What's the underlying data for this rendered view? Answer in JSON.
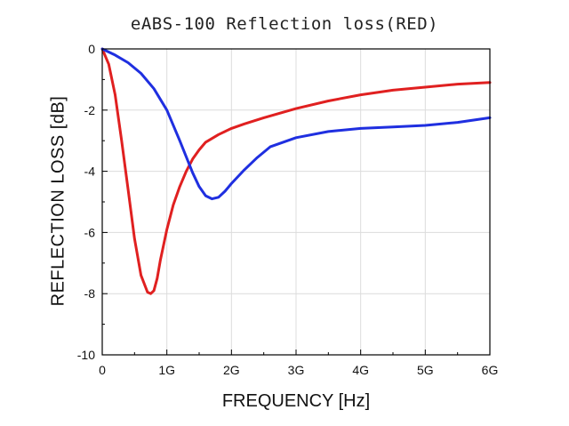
{
  "chart_data": {
    "type": "line",
    "title": "eABS-100 Reflection loss(RED)",
    "xlabel": "FREQUENCY [Hz]",
    "ylabel": "REFLECTION LOSS [dB]",
    "xlim": [
      0,
      6
    ],
    "ylim": [
      -10,
      0
    ],
    "x_ticks": [
      0,
      1,
      2,
      3,
      4,
      5,
      6
    ],
    "x_tick_labels": [
      "0",
      "1G",
      "2G",
      "3G",
      "4G",
      "5G",
      "6G"
    ],
    "y_ticks": [
      0,
      -2,
      -4,
      -6,
      -8,
      -10
    ],
    "y_tick_labels": [
      "0",
      "-2",
      "-4",
      "-6",
      "-8",
      "-10"
    ],
    "grid": true,
    "legend": "none",
    "series": [
      {
        "color": "#e02020",
        "x": [
          0,
          0.1,
          0.2,
          0.3,
          0.4,
          0.5,
          0.6,
          0.7,
          0.75,
          0.8,
          0.85,
          0.9,
          1.0,
          1.1,
          1.2,
          1.3,
          1.4,
          1.5,
          1.6,
          1.8,
          2.0,
          2.2,
          2.5,
          3.0,
          3.5,
          4.0,
          4.5,
          5.0,
          5.5,
          6.0
        ],
        "y": [
          0,
          -0.5,
          -1.5,
          -3.0,
          -4.6,
          -6.2,
          -7.4,
          -7.95,
          -8.0,
          -7.9,
          -7.5,
          -6.9,
          -5.9,
          -5.1,
          -4.5,
          -4.0,
          -3.6,
          -3.3,
          -3.05,
          -2.8,
          -2.6,
          -2.45,
          -2.25,
          -1.95,
          -1.7,
          -1.5,
          -1.35,
          -1.25,
          -1.15,
          -1.1
        ]
      },
      {
        "color": "#1f2fe0",
        "x": [
          0,
          0.2,
          0.4,
          0.6,
          0.8,
          1.0,
          1.2,
          1.4,
          1.5,
          1.6,
          1.7,
          1.8,
          1.9,
          2.0,
          2.2,
          2.4,
          2.6,
          3.0,
          3.5,
          4.0,
          4.5,
          5.0,
          5.5,
          6.0
        ],
        "y": [
          0,
          -0.2,
          -0.45,
          -0.8,
          -1.3,
          -2.0,
          -3.0,
          -4.05,
          -4.5,
          -4.8,
          -4.9,
          -4.85,
          -4.65,
          -4.4,
          -3.95,
          -3.55,
          -3.2,
          -2.9,
          -2.7,
          -2.6,
          -2.55,
          -2.5,
          -2.4,
          -2.25
        ]
      }
    ]
  }
}
